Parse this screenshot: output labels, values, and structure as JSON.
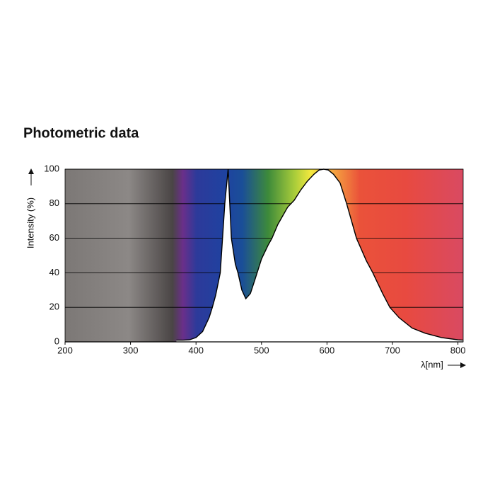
{
  "chart_data": {
    "type": "area",
    "title": "Photometric data",
    "x_label": "λ[nm]",
    "y_label": "Intensity (%)",
    "x": [
      370,
      380,
      390,
      400,
      410,
      420,
      425,
      430,
      437,
      444,
      449,
      454,
      460,
      464,
      470,
      476,
      483,
      490,
      500,
      510,
      516,
      525,
      540,
      550,
      560,
      570,
      580,
      588,
      595,
      602,
      610,
      620,
      630,
      645,
      660,
      670,
      685,
      696,
      710,
      730,
      750,
      775,
      800,
      808
    ],
    "series": [
      {
        "name": "Intensity",
        "color": "#000000",
        "values": [
          1,
          1,
          1.2,
          2.5,
          6,
          14,
          20,
          27,
          40,
          80,
          100,
          60,
          45,
          40,
          30,
          25,
          28,
          36,
          48,
          56,
          60,
          68,
          78,
          82,
          88,
          93,
          97,
          99.5,
          100,
          99.5,
          97,
          92,
          80,
          60,
          47,
          40,
          28,
          20,
          14,
          8,
          5,
          2.5,
          1.2,
          1
        ]
      }
    ],
    "xlim": [
      200,
      808
    ],
    "ylim": [
      0,
      100
    ],
    "xticks": [
      200,
      300,
      400,
      500,
      600,
      700,
      800
    ],
    "yticks": [
      0,
      20,
      40,
      60,
      80,
      100
    ],
    "grid": true
  }
}
